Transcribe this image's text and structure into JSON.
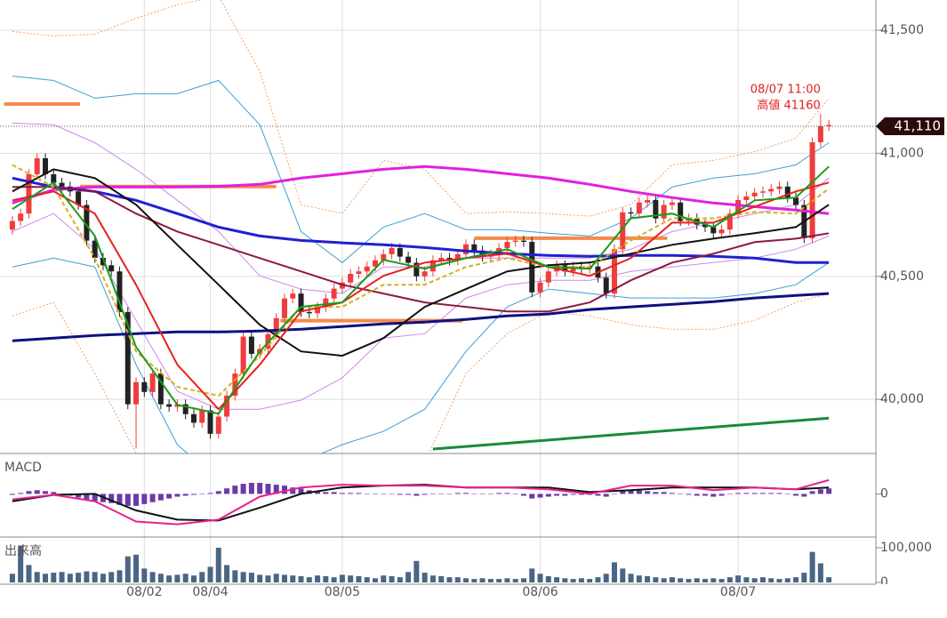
{
  "chart_data": [
    {
      "type": "candlestick",
      "xlim": [
        -1.5,
        104.7
      ],
      "ylim": [
        39780,
        41623
      ],
      "yticks": [
        {
          "value": 40000,
          "label": "40,000"
        },
        {
          "value": 40500,
          "label": "40,500"
        },
        {
          "value": 41000,
          "label": "41,000"
        },
        {
          "value": 41500,
          "label": "41,500"
        }
      ],
      "xticks": [
        {
          "value": 16,
          "label": "08/02"
        },
        {
          "value": 24,
          "label": "08/04"
        },
        {
          "value": 40,
          "label": "08/05"
        },
        {
          "value": 64,
          "label": "08/06"
        },
        {
          "value": 88,
          "label": "08/07"
        }
      ],
      "grid": true,
      "up_color": "#f03c3c",
      "down_color": "#222222",
      "open": [
        40690,
        40725,
        40755,
        40915,
        40980,
        40915,
        40880,
        40865,
        40845,
        40790,
        40645,
        40575,
        40545,
        40520,
        40355,
        39980,
        40070,
        40030,
        40105,
        39980,
        39970,
        39980,
        39940,
        39905,
        39955,
        39860,
        39930,
        40015,
        40105,
        40255,
        40185,
        40205,
        40265,
        40330,
        40410,
        40430,
        40355,
        40350,
        40375,
        40410,
        40450,
        40475,
        40510,
        40520,
        40540,
        40565,
        40590,
        40615,
        40580,
        40555,
        40500,
        40520,
        40565,
        40575,
        40565,
        40590,
        40630,
        40605,
        40580,
        40590,
        40615,
        40640,
        40645,
        40640,
        40435,
        40475,
        40520,
        40545,
        40520,
        40540,
        40530,
        40540,
        40495,
        40430,
        40610,
        40760,
        40755,
        40800,
        40810,
        40735,
        40790,
        40800,
        40725,
        40735,
        40710,
        40700,
        40675,
        40690,
        40755,
        40810,
        40825,
        40840,
        40845,
        40855,
        40865,
        40820,
        40790,
        40655,
        41045,
        41110
      ],
      "high": [
        40745,
        40775,
        40935,
        41000,
        41000,
        40935,
        40900,
        40885,
        40865,
        40810,
        40665,
        40595,
        40565,
        40540,
        40375,
        40090,
        40090,
        40125,
        40125,
        40000,
        40000,
        40000,
        39960,
        39975,
        39975,
        39950,
        40035,
        40125,
        40275,
        40275,
        40225,
        40285,
        40350,
        40430,
        40450,
        40450,
        40375,
        40395,
        40430,
        40470,
        40495,
        40530,
        40540,
        40560,
        40585,
        40610,
        40635,
        40635,
        40600,
        40575,
        40540,
        40585,
        40595,
        40595,
        40610,
        40650,
        40650,
        40625,
        40610,
        40635,
        40660,
        40665,
        40665,
        40660,
        40495,
        40540,
        40565,
        40565,
        40560,
        40560,
        40560,
        40560,
        40515,
        40630,
        40780,
        40780,
        40820,
        40830,
        40830,
        40810,
        40820,
        40820,
        40755,
        40755,
        40730,
        40720,
        40710,
        40775,
        40830,
        40845,
        40860,
        40865,
        40875,
        40885,
        40885,
        40840,
        40810,
        41065,
        41160,
        41135
      ],
      "low": [
        40670,
        40705,
        40735,
        40895,
        40895,
        40860,
        40845,
        40825,
        40770,
        40625,
        40555,
        40525,
        40500,
        40335,
        39960,
        39800,
        40010,
        40010,
        39960,
        39950,
        39950,
        39920,
        39885,
        39885,
        39840,
        39840,
        39910,
        39995,
        40085,
        40165,
        40165,
        40185,
        40245,
        40310,
        40390,
        40335,
        40330,
        40330,
        40355,
        40390,
        40430,
        40455,
        40490,
        40500,
        40520,
        40545,
        40570,
        40560,
        40535,
        40480,
        40480,
        40500,
        40545,
        40545,
        40545,
        40570,
        40585,
        40560,
        40560,
        40570,
        40595,
        40620,
        40620,
        40415,
        40415,
        40455,
        40500,
        40500,
        40500,
        40510,
        40510,
        40475,
        40410,
        40410,
        40590,
        40735,
        40735,
        40780,
        40715,
        40715,
        40770,
        40705,
        40705,
        40690,
        40680,
        40655,
        40655,
        40670,
        40735,
        40790,
        40805,
        40820,
        40825,
        40835,
        40800,
        40770,
        40635,
        40635,
        41025,
        41090
      ],
      "close": [
        40725,
        40755,
        40915,
        40980,
        40915,
        40880,
        40865,
        40845,
        40790,
        40645,
        40575,
        40545,
        40520,
        40355,
        39980,
        40070,
        40030,
        40105,
        39980,
        39970,
        39980,
        39940,
        39905,
        39955,
        39860,
        39930,
        40015,
        40105,
        40255,
        40185,
        40205,
        40265,
        40330,
        40410,
        40430,
        40355,
        40350,
        40375,
        40410,
        40450,
        40475,
        40510,
        40520,
        40540,
        40565,
        40590,
        40615,
        40580,
        40555,
        40500,
        40520,
        40565,
        40575,
        40565,
        40590,
        40630,
        40605,
        40580,
        40590,
        40615,
        40640,
        40645,
        40640,
        40435,
        40475,
        40520,
        40545,
        40520,
        40540,
        40530,
        40540,
        40495,
        40430,
        40610,
        40760,
        40755,
        40800,
        40810,
        40735,
        40790,
        40800,
        40725,
        40735,
        40710,
        40700,
        40675,
        40690,
        40755,
        40810,
        40825,
        40840,
        40845,
        40855,
        40865,
        40820,
        40790,
        40655,
        41045,
        41110,
        41115
      ],
      "overlay_x": [
        0,
        5,
        10,
        15,
        20,
        25,
        30,
        35,
        40,
        45,
        50,
        55,
        60,
        65,
        70,
        75,
        80,
        85,
        90,
        95,
        99
      ],
      "bands": [
        {
          "color": "#f5a060",
          "style": "dotted",
          "values": [
            41495,
            41477,
            41484,
            41549,
            41603,
            41639,
            41332,
            40791,
            40755,
            40971,
            40935,
            40755,
            40762,
            40755,
            40744,
            40791,
            40953,
            40971,
            41007,
            41061,
            41224
          ]
        },
        {
          "color": "#f5a060",
          "style": "dotted",
          "values": [
            40339,
            40394,
            40105,
            39780,
            39599,
            39491,
            39527,
            39599,
            39672,
            39599,
            39744,
            40105,
            40267,
            40357,
            40339,
            40303,
            40285,
            40285,
            40321,
            40394,
            40430
          ]
        },
        {
          "color": "#3aa0d8",
          "style": "thin",
          "values": [
            41314,
            41296,
            41224,
            41242,
            41242,
            41296,
            41116,
            40682,
            40556,
            40700,
            40755,
            40690,
            40690,
            40675,
            40664,
            40736,
            40863,
            40899,
            40917,
            40953,
            41043
          ]
        },
        {
          "color": "#3aa0d8",
          "style": "thin",
          "values": [
            40538,
            40574,
            40538,
            40141,
            39816,
            39672,
            39690,
            39744,
            39816,
            39870,
            39960,
            40195,
            40376,
            40448,
            40430,
            40412,
            40412,
            40412,
            40430,
            40466,
            40556
          ]
        },
        {
          "color": "#cc88ee",
          "style": "thin",
          "values": [
            41123,
            41116,
            41043,
            40935,
            40809,
            40682,
            40502,
            40448,
            40430,
            40538,
            40538,
            40574,
            40574,
            40574,
            40574,
            40610,
            40682,
            40718,
            40755,
            40791,
            40899
          ]
        },
        {
          "color": "#cc88ee",
          "style": "thin",
          "values": [
            40682,
            40755,
            40610,
            40321,
            40033,
            39960,
            39960,
            39997,
            40087,
            40249,
            40267,
            40412,
            40466,
            40484,
            40484,
            40520,
            40538,
            40556,
            40574,
            40610,
            40664
          ]
        }
      ],
      "averages": [
        {
          "color": "#e020e0",
          "style": "thick",
          "values": [
            40798,
            40852,
            40863,
            40863,
            40863,
            40866,
            40874,
            40899,
            40917,
            40935,
            40946,
            40935,
            40917,
            40899,
            40874,
            40845,
            40820,
            40798,
            40783,
            40769,
            40755
          ]
        },
        {
          "color": "#2020d0",
          "style": "thick",
          "values": [
            40899,
            40863,
            40845,
            40809,
            40755,
            40700,
            40664,
            40646,
            40636,
            40628,
            40617,
            40603,
            40592,
            40585,
            40581,
            40585,
            40585,
            40581,
            40574,
            40556,
            40556
          ]
        },
        {
          "color": "#101080",
          "style": "thick",
          "values": [
            40238,
            40249,
            40260,
            40267,
            40274,
            40274,
            40278,
            40285,
            40296,
            40307,
            40314,
            40325,
            40339,
            40347,
            40365,
            40376,
            40386,
            40397,
            40412,
            40422,
            40430
          ]
        },
        {
          "color": "#8a1a40",
          "style": "medium",
          "values": [
            40863,
            40863,
            40845,
            40755,
            40682,
            40628,
            40574,
            40520,
            40466,
            40430,
            40394,
            40376,
            40357,
            40357,
            40394,
            40484,
            40556,
            40592,
            40639,
            40653,
            40675
          ]
        },
        {
          "color": "#111111",
          "style": "medium",
          "values": [
            40845,
            40935,
            40899,
            40791,
            40628,
            40466,
            40303,
            40195,
            40177,
            40249,
            40376,
            40448,
            40520,
            40545,
            40556,
            40592,
            40628,
            40653,
            40675,
            40700,
            40791
          ]
        },
        {
          "color": "#d4b020",
          "style": "dashed",
          "values": [
            40953,
            40863,
            40574,
            40195,
            40051,
            40015,
            40177,
            40376,
            40376,
            40466,
            40466,
            40538,
            40574,
            40538,
            40538,
            40646,
            40736,
            40736,
            40762,
            40755,
            40856
          ]
        },
        {
          "color": "#e82020",
          "style": "medium",
          "values": [
            40809,
            40845,
            40755,
            40466,
            40141,
            39960,
            40141,
            40357,
            40394,
            40502,
            40556,
            40574,
            40592,
            40538,
            40502,
            40574,
            40718,
            40718,
            40783,
            40845,
            40881
          ]
        },
        {
          "color": "#1a9a1a",
          "style": "medium",
          "values": [
            40773,
            40881,
            40664,
            40213,
            39978,
            39942,
            40195,
            40376,
            40394,
            40567,
            40531,
            40574,
            40610,
            40538,
            40531,
            40736,
            40755,
            40700,
            40809,
            40820,
            40946
          ]
        }
      ],
      "levels": [
        {
          "value": 41200,
          "x": [
            -1,
            8.2
          ]
        },
        {
          "value": 40865,
          "x": [
            8.2,
            32
          ]
        },
        {
          "value": 40320,
          "x": [
            32.5,
            54.6
          ]
        },
        {
          "value": 40655,
          "x": [
            56,
            79.4
          ]
        }
      ],
      "level_color": "#f58a4b",
      "trendline": {
        "color": "#1a8a3a",
        "x": [
          51,
          99
        ],
        "values": [
          39798,
          39924
        ]
      },
      "current": {
        "value": 41110,
        "label": "41,110"
      },
      "annotation": [
        "08/07 11:00",
        "高値 41160"
      ]
    },
    {
      "type": "macd",
      "title": "MACD",
      "ylim": [
        -92,
        84
      ],
      "yticks": [
        0
      ],
      "x": [
        0,
        5,
        10,
        15,
        20,
        25,
        30,
        35,
        40,
        45,
        50,
        55,
        60,
        65,
        70,
        75,
        80,
        85,
        90,
        95,
        99
      ],
      "series": [
        {
          "color": "#111111",
          "values": [
            -16,
            -2,
            0,
            -36,
            -56,
            -58,
            -30,
            0,
            14,
            18,
            20,
            14,
            14,
            14,
            4,
            8,
            14,
            14,
            14,
            10,
            14
          ]
        },
        {
          "color": "#e8208a",
          "values": [
            -12,
            -2,
            -16,
            -60,
            -66,
            -56,
            -6,
            14,
            20,
            18,
            18,
            14,
            14,
            10,
            0,
            18,
            18,
            8,
            14,
            10,
            30
          ]
        }
      ],
      "histogram_color": "#6a3aa8",
      "histogram": [
        -2,
        2,
        6,
        8,
        6,
        4,
        0,
        -4,
        -8,
        -12,
        -16,
        -18,
        -20,
        -24,
        -26,
        -26,
        -22,
        -18,
        -14,
        -10,
        -6,
        -4,
        -2,
        0,
        2,
        6,
        12,
        18,
        22,
        24,
        24,
        22,
        20,
        18,
        14,
        12,
        8,
        6,
        4,
        4,
        2,
        2,
        2,
        0,
        0,
        0,
        0,
        -2,
        -2,
        -4,
        -2,
        0,
        0,
        0,
        2,
        2,
        0,
        0,
        0,
        2,
        2,
        0,
        -4,
        -10,
        -8,
        -6,
        -4,
        -4,
        -2,
        -2,
        -2,
        -4,
        -6,
        0,
        6,
        8,
        8,
        6,
        4,
        4,
        2,
        0,
        -2,
        -4,
        -4,
        -6,
        -4,
        0,
        2,
        2,
        2,
        2,
        2,
        2,
        0,
        -4,
        -6,
        6,
        10,
        12
      ]
    },
    {
      "type": "bar",
      "title": "出来高",
      "ylim": [
        0,
        123000
      ],
      "yticks": [
        0,
        {
          "value": 100000,
          "label": "100,000"
        }
      ],
      "color": "#4a6585",
      "values": [
        25000,
        105000,
        50000,
        30000,
        25000,
        28000,
        30000,
        25000,
        28000,
        32000,
        30000,
        25000,
        30000,
        35000,
        75000,
        80000,
        40000,
        30000,
        25000,
        20000,
        22000,
        25000,
        20000,
        30000,
        45000,
        100000,
        50000,
        35000,
        30000,
        28000,
        22000,
        20000,
        25000,
        22000,
        20000,
        18000,
        15000,
        20000,
        18000,
        15000,
        22000,
        20000,
        18000,
        15000,
        12000,
        20000,
        18000,
        15000,
        30000,
        62000,
        28000,
        20000,
        18000,
        15000,
        15000,
        12000,
        10000,
        12000,
        10000,
        10000,
        12000,
        10000,
        12000,
        40000,
        25000,
        18000,
        15000,
        12000,
        10000,
        12000,
        10000,
        15000,
        25000,
        58000,
        40000,
        25000,
        20000,
        18000,
        15000,
        12000,
        15000,
        12000,
        10000,
        12000,
        10000,
        12000,
        10000,
        15000,
        20000,
        15000,
        12000,
        15000,
        12000,
        10000,
        12000,
        15000,
        28000,
        88000,
        55000,
        15000
      ]
    }
  ]
}
